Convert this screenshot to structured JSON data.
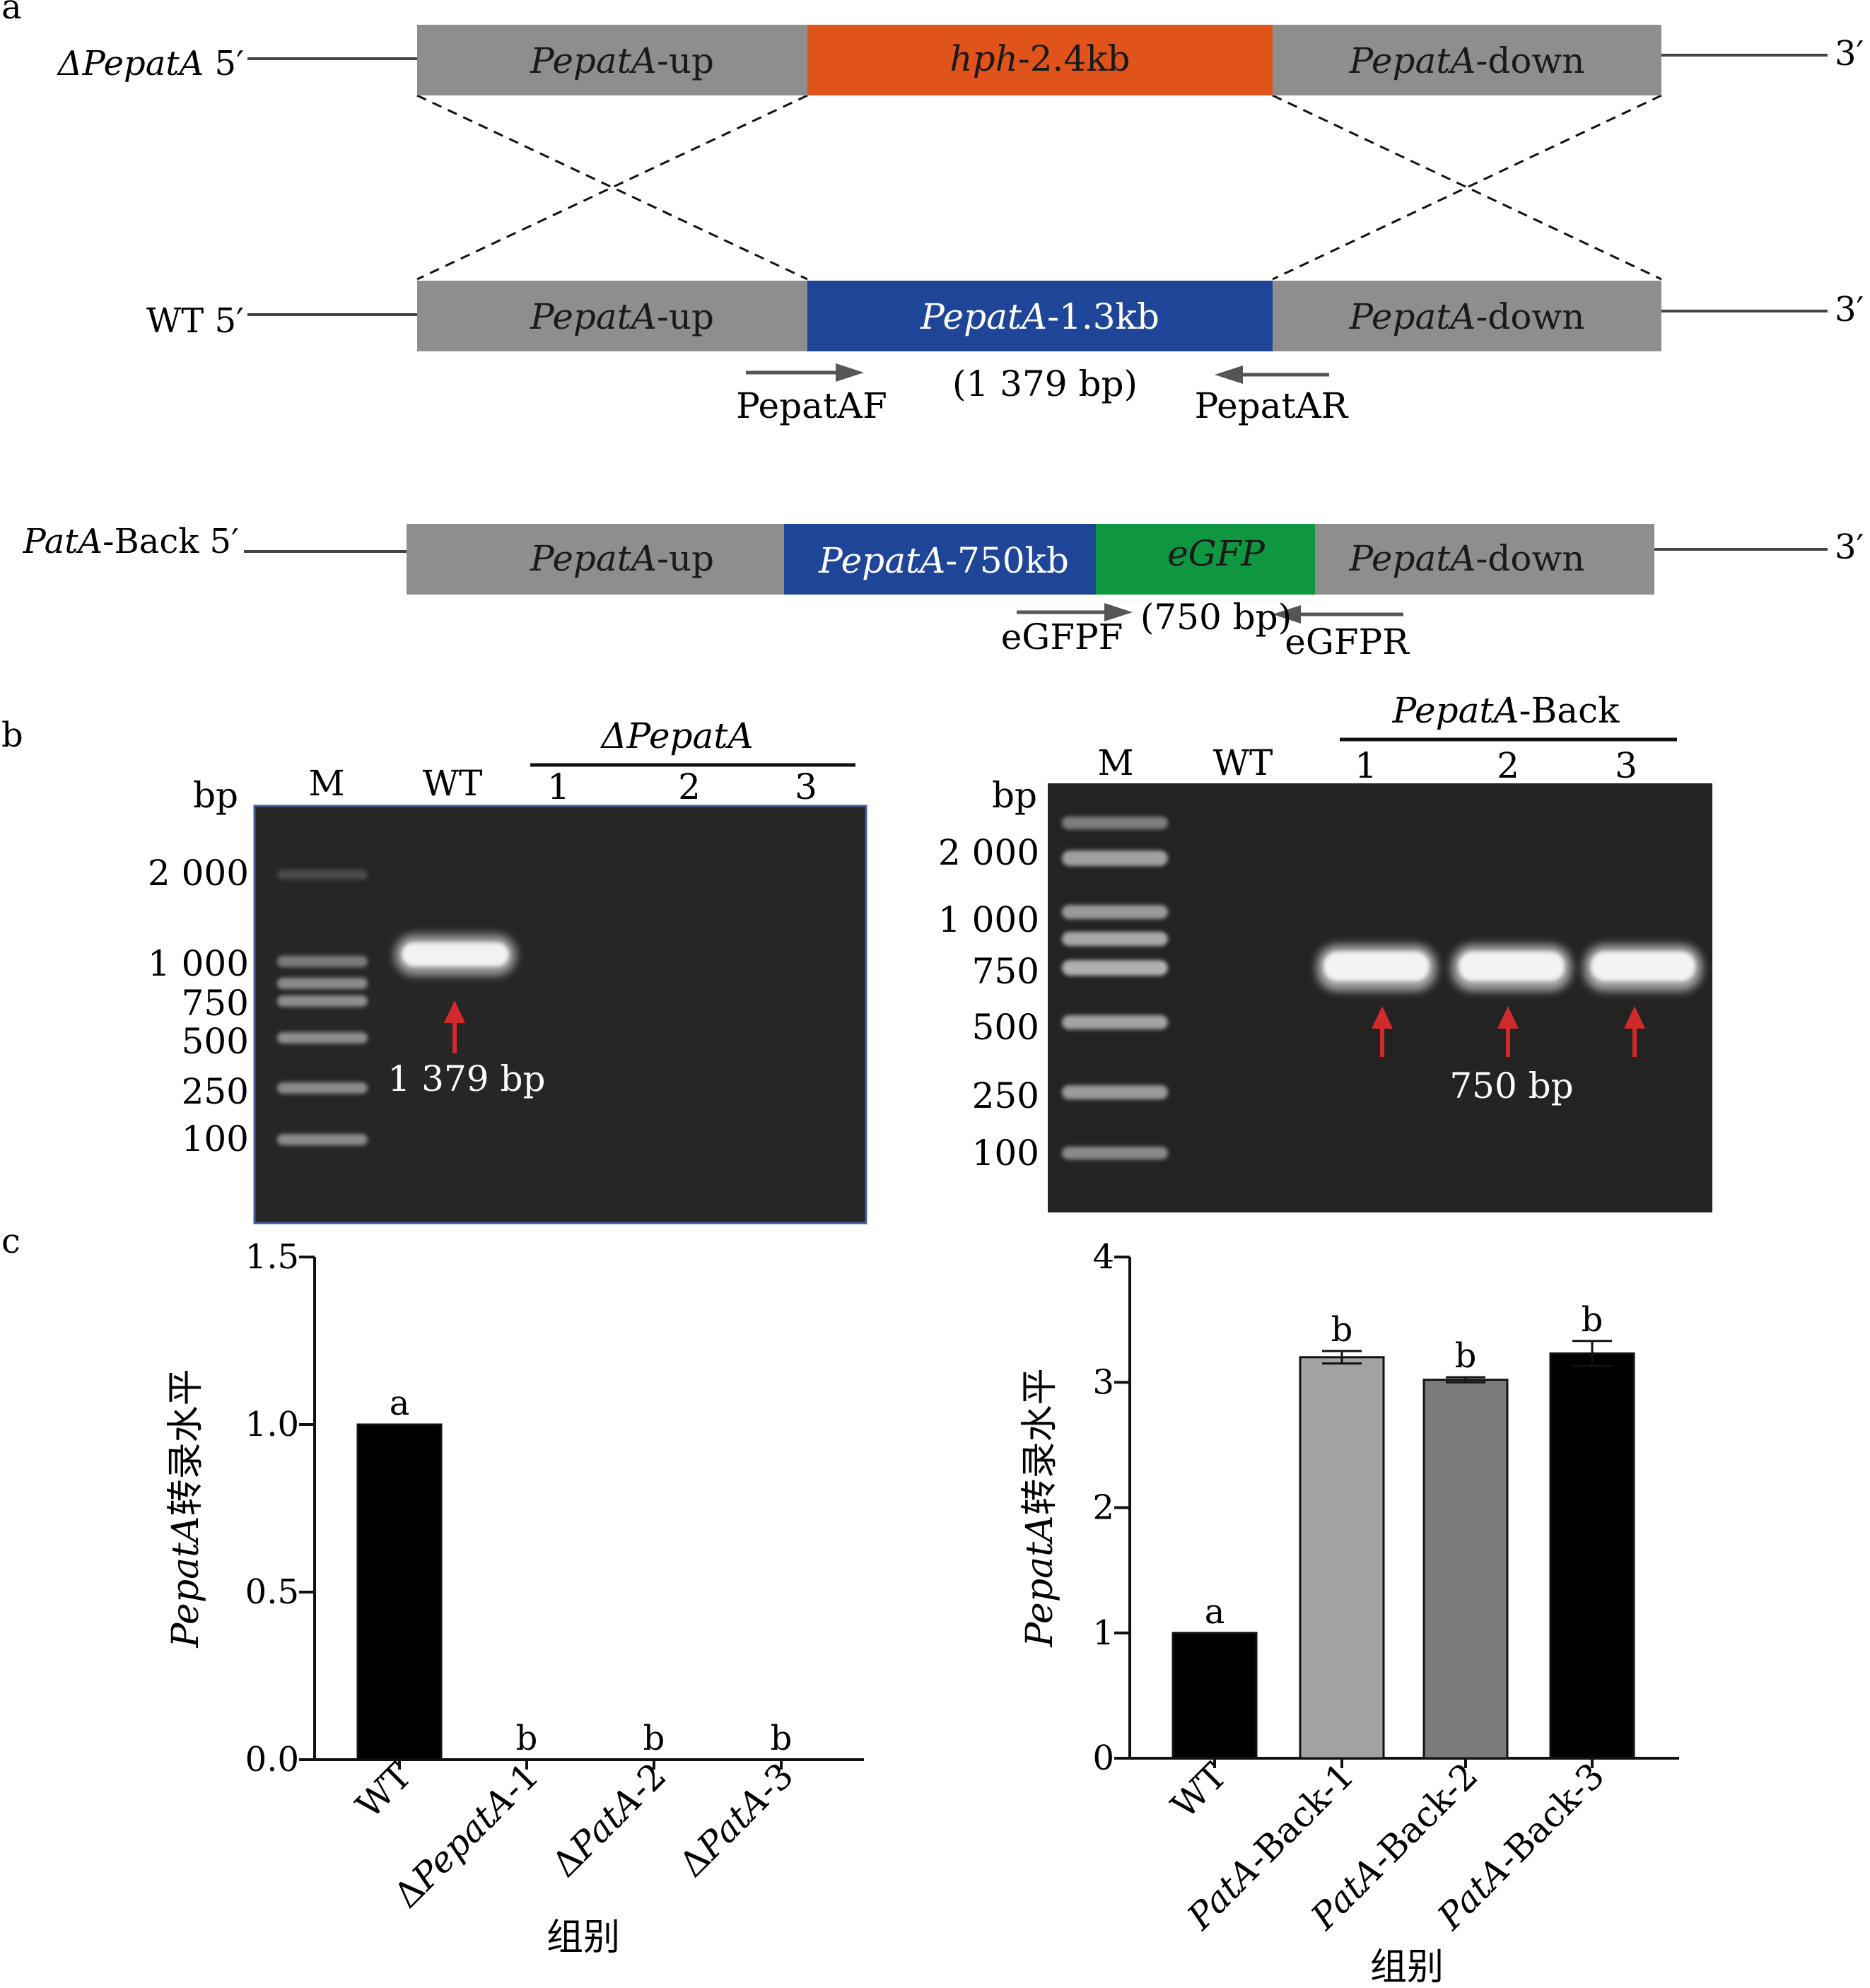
{
  "panel_labels": {
    "a": "a",
    "b": "b",
    "c": "c"
  },
  "panel_a": {
    "rows": [
      {
        "name": "deletion",
        "label_italic": "ΔPepatA",
        "label_plain": " 5′",
        "end": "3′",
        "segments": [
          {
            "name": "up",
            "italic": "PepatA",
            "plain": "-up",
            "color": "#8e8e8e",
            "text_color": "#1a1a1a"
          },
          {
            "name": "hph",
            "italic": "hph",
            "plain": "-2.4kb",
            "color": "#e0541c",
            "text_color": "#1a1a1a"
          },
          {
            "name": "down",
            "italic": "PepatA",
            "plain": "-down",
            "color": "#8e8e8e",
            "text_color": "#1a1a1a"
          }
        ]
      },
      {
        "name": "wild-type",
        "label_italic": "",
        "label_plain": "WT 5′",
        "end": "3′",
        "segments": [
          {
            "name": "up",
            "italic": "PepatA",
            "plain": "-up",
            "color": "#8e8e8e",
            "text_color": "#1a1a1a"
          },
          {
            "name": "gene",
            "italic": "PepatA",
            "plain": "-1.3kb",
            "color": "#1e4597",
            "text_color": "#ffffff"
          },
          {
            "name": "down",
            "italic": "PepatA",
            "plain": "-down",
            "color": "#8e8e8e",
            "text_color": "#1a1a1a"
          }
        ],
        "primer_fwd": "PepatAF",
        "primer_rev": "PepatAR",
        "amplicon": "(1 379 bp)"
      },
      {
        "name": "complement",
        "label_italic": "PatA",
        "label_plain": "-Back 5′",
        "end": "3′",
        "segments": [
          {
            "name": "up",
            "italic": "PepatA",
            "plain": "-up",
            "color": "#8e8e8e",
            "text_color": "#1a1a1a"
          },
          {
            "name": "gene",
            "italic": "PepatA",
            "plain": "-750kb",
            "color": "#1e4597",
            "text_color": "#ffffff"
          },
          {
            "name": "egfp",
            "italic": "eGFP",
            "plain": "",
            "color": "#0f9640",
            "text_color": "#1a1a1a"
          },
          {
            "name": "down",
            "italic": "PepatA",
            "plain": "-down",
            "color": "#8e8e8e",
            "text_color": "#1a1a1a"
          }
        ],
        "primer_fwd": "eGFPF",
        "primer_rev": "eGFPR",
        "amplicon": "(750 bp)"
      }
    ]
  },
  "panel_b": {
    "gels": [
      {
        "name": "deletion-gel",
        "marker_lane": "M",
        "control_lane": "WT",
        "group_label_italic": "ΔPepatA",
        "group_label_plain": "",
        "sample_lanes": [
          "1",
          "2",
          "3"
        ],
        "size_unit": "bp",
        "ladder_sizes": [
          "2 000",
          "1 000",
          "750",
          "500",
          "250",
          "100"
        ],
        "band_label": "1 379 bp",
        "band_arrow_color": "#d22a2a"
      },
      {
        "name": "complement-gel",
        "marker_lane": "M",
        "control_lane": "WT",
        "group_label_italic": "PepatA",
        "group_label_plain": "-Back",
        "sample_lanes": [
          "1",
          "2",
          "3"
        ],
        "size_unit": "bp",
        "ladder_sizes": [
          "2 000",
          "1 000",
          "750",
          "500",
          "250",
          "100"
        ],
        "band_label": "750 bp",
        "band_arrow_color": "#d22a2a"
      }
    ]
  },
  "chart_data": [
    {
      "type": "bar",
      "categories": [
        "WT",
        "ΔPepatA-1",
        "ΔPatA-2",
        "ΔPatA-3"
      ],
      "category_parts": [
        {
          "plain_pre": "WT",
          "italic": "",
          "plain_post": ""
        },
        {
          "plain_pre": "Δ",
          "italic": "PepatA",
          "plain_post": "-1"
        },
        {
          "plain_pre": "Δ",
          "italic": "PatA",
          "plain_post": "-2"
        },
        {
          "plain_pre": "Δ",
          "italic": "PatA",
          "plain_post": "-3"
        }
      ],
      "values": [
        1.0,
        0.0,
        0.0,
        0.0
      ],
      "errors": [
        0,
        0,
        0,
        0
      ],
      "significance": [
        "a",
        "b",
        "b",
        "b"
      ],
      "bar_colors": [
        "#000000",
        "#000000",
        "#000000",
        "#000000"
      ],
      "ylim": [
        0,
        1.5
      ],
      "yticks": [
        "0.0",
        "0.5",
        "1.0",
        "1.5"
      ],
      "ylabel_italic": "PepatA",
      "ylabel_plain": "转录水平",
      "xlabel": "组别"
    },
    {
      "type": "bar",
      "categories": [
        "WT",
        "PatA-Back-1",
        "PatA-Back-2",
        "PatA-Back-3"
      ],
      "category_parts": [
        {
          "plain_pre": "WT",
          "italic": "",
          "plain_post": ""
        },
        {
          "plain_pre": "",
          "italic": "PatA",
          "plain_post": "-Back-1"
        },
        {
          "plain_pre": "",
          "italic": "PatA",
          "plain_post": "-Back-2"
        },
        {
          "plain_pre": "",
          "italic": "PatA",
          "plain_post": "-Back-3"
        }
      ],
      "values": [
        1.0,
        3.2,
        3.02,
        3.23
      ],
      "errors": [
        0,
        0.05,
        0.02,
        0.1
      ],
      "significance": [
        "a",
        "b",
        "b",
        "b"
      ],
      "bar_colors": [
        "#000000",
        "#a3a3a6",
        "#7b7b7d",
        "#000000"
      ],
      "ylim": [
        0,
        4
      ],
      "yticks": [
        "0",
        "1",
        "2",
        "3",
        "4"
      ],
      "ylabel_italic": "PepatA",
      "ylabel_plain": "转录水平",
      "xlabel": "组别"
    }
  ]
}
